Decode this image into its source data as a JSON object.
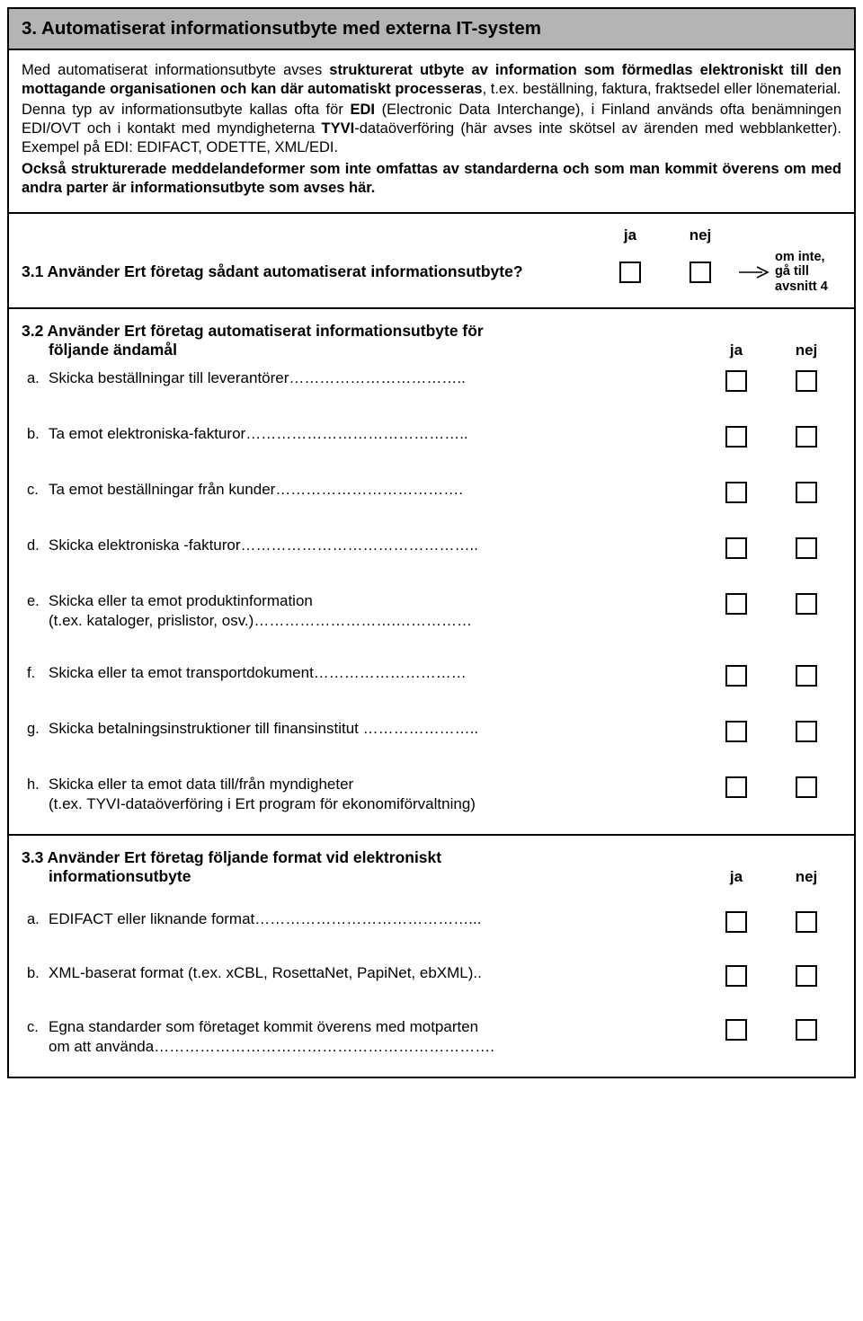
{
  "header": "3. Automatiserat informationsutbyte med externa IT-system",
  "intro": {
    "p1a": "Med automatiserat informationsutbyte avses ",
    "p1b": "strukturerat utbyte av information som förmedlas elektroniskt till den mottagande organisationen och kan där automatiskt processeras",
    "p1c": ", t.ex. beställning, faktura, fraktsedel eller lönematerial.",
    "p2a": "Denna typ av informationsutbyte kallas ofta för ",
    "p2b": "EDI",
    "p2c": " (Electronic Data Interchange), i Finland används ofta benämningen EDI/OVT och i kontakt med myndigheterna ",
    "p2d": "TYVI",
    "p2e": "-dataöverföring (här avses inte skötsel av ärenden med webblanketter). Exempel på EDI: EDIFACT, ODETTE, XML/EDI.",
    "p3": "Också strukturerade meddelandeformer som inte omfattas av standarderna och som man kommit överens om med andra parter är informationsutbyte som avses här."
  },
  "labels": {
    "yes": "ja",
    "no": "nej"
  },
  "q31": {
    "text": "3.1 Använder Ert företag sådant automatiserat informationsutbyte?",
    "hint": "om inte, gå till avsnitt 4"
  },
  "q32": {
    "title1": "3.2 Använder Ert företag automatiserat informationsutbyte för",
    "title2": "följande ändamål",
    "items": [
      {
        "l": "a.",
        "t": "Skicka beställningar till leverantörer…………………………….."
      },
      {
        "l": "b.",
        "t": "Ta emot elektroniska-fakturor…………………………………….."
      },
      {
        "l": "c.",
        "t": "Ta emot beställningar från kunder………………………………."
      },
      {
        "l": "d.",
        "t": "Skicka elektroniska -fakturor……………………………………….."
      },
      {
        "l": "e.",
        "t": "Skicka eller ta emot produktinformation\n(t.ex. kataloger, prislistor, osv.)……………………….……………"
      },
      {
        "l": "f.",
        "t": "Skicka eller ta emot transportdokument…………………………"
      },
      {
        "l": "g.",
        "t": "Skicka betalningsinstruktioner till finansinstitut ………………….."
      },
      {
        "l": "h.",
        "t": "Skicka eller ta emot data till/från myndigheter\n(t.ex. TYVI-dataöverföring i Ert program för ekonomiförvaltning)"
      }
    ]
  },
  "q33": {
    "title1": "3.3 Använder Ert företag följande format vid elektroniskt",
    "title2": "informationsutbyte",
    "items": [
      {
        "l": "a.",
        "t": "EDIFACT eller liknande format……………………………………..."
      },
      {
        "l": "b.",
        "t": "XML-baserat format (t.ex. xCBL, RosettaNet, PapiNet, ebXML).."
      },
      {
        "l": "c.",
        "t": "Egna standarder som företaget kommit överens med motparten\nom att använda…………………………………………………………."
      }
    ]
  }
}
